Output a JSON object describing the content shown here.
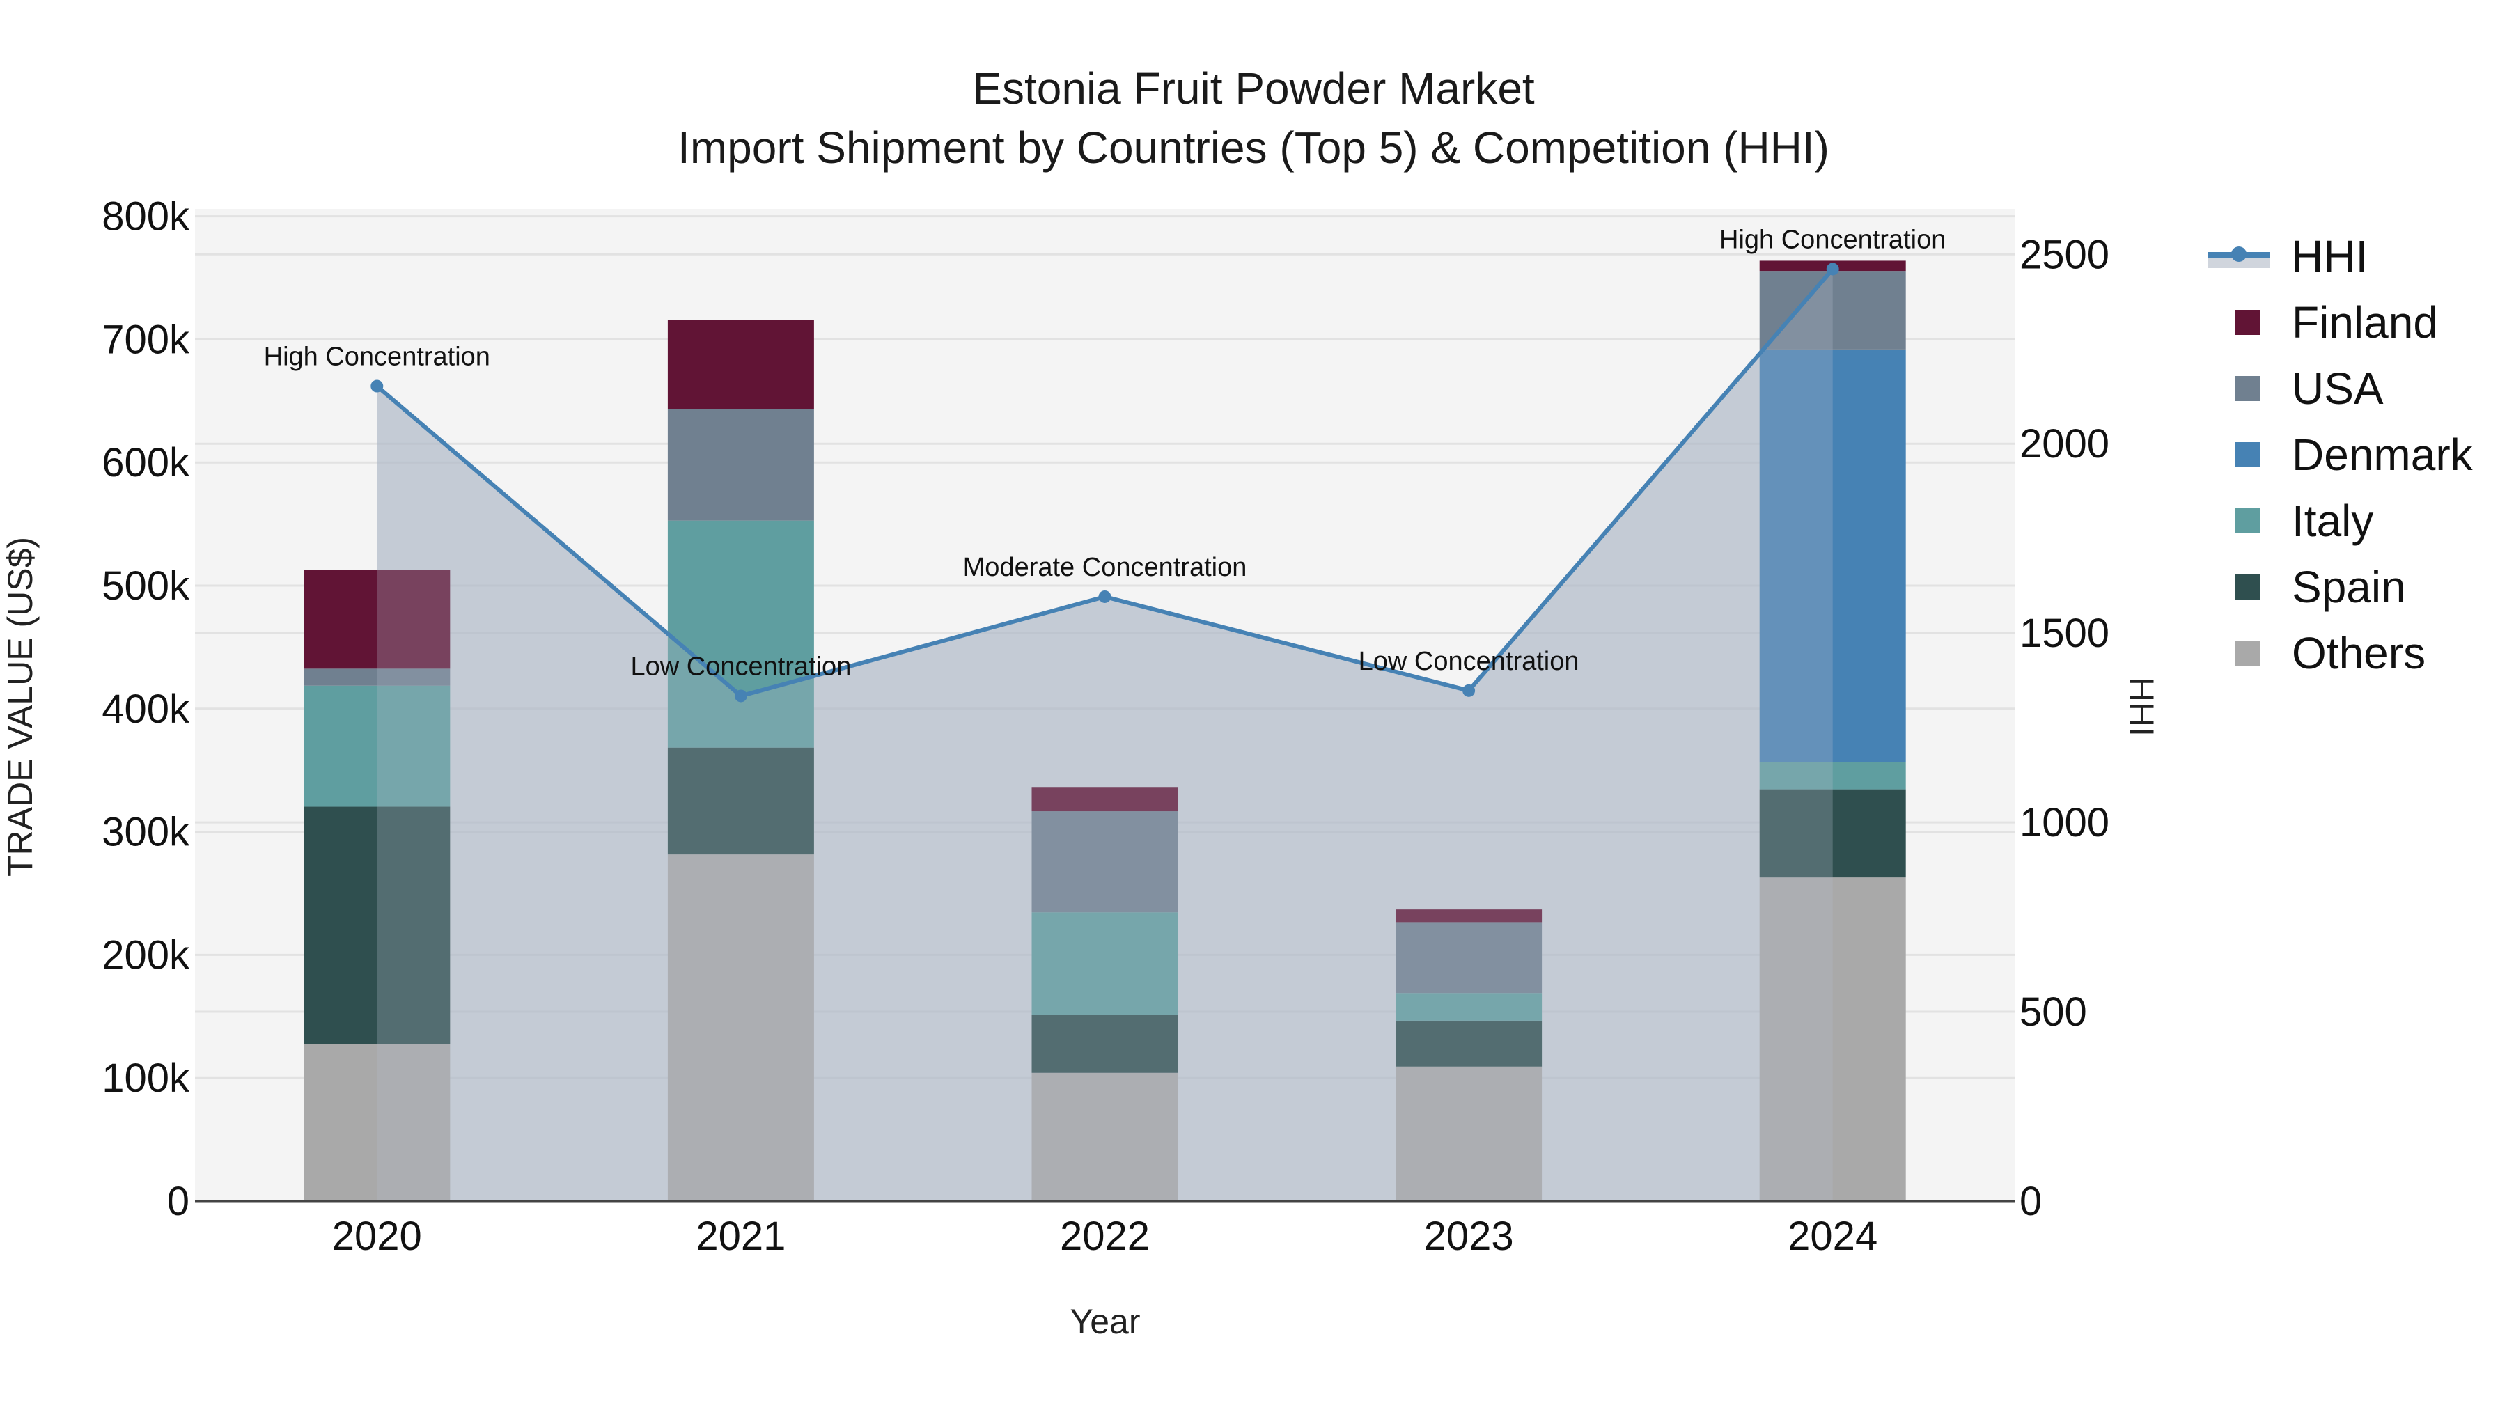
{
  "title": {
    "line1": "Estonia Fruit Powder Market",
    "line2": "Import Shipment by Countries (Top 5) & Competition (HHI)"
  },
  "axes": {
    "x_title": "Year",
    "y_left_title": "TRADE VALUE (US$)",
    "y_right_title": "HHI",
    "y_left_ticks": [
      "0",
      "100k",
      "200k",
      "300k",
      "400k",
      "500k",
      "600k",
      "700k",
      "800k"
    ],
    "y_right_ticks": [
      "0",
      "500",
      "1000",
      "1500",
      "2000",
      "2500"
    ]
  },
  "legend": [
    {
      "label": "HHI",
      "type": "line",
      "color": "#4682b4"
    },
    {
      "label": "Finland",
      "type": "bar",
      "color": "#611435"
    },
    {
      "label": "USA",
      "type": "bar",
      "color": "#708090"
    },
    {
      "label": "Denmark",
      "type": "bar",
      "color": "#4682b4"
    },
    {
      "label": "Italy",
      "type": "bar",
      "color": "#5f9ea0"
    },
    {
      "label": "Spain",
      "type": "bar",
      "color": "#2f4f4f"
    },
    {
      "label": "Others",
      "type": "bar",
      "color": "#a9a9a9"
    }
  ],
  "chart_data": {
    "type": "bar",
    "subtype": "stacked bar with HHI line (secondary axis)",
    "title": "Estonia Fruit Powder Market — Import Shipment by Countries (Top 5) & Competition (HHI)",
    "xlabel": "Year",
    "ylabel": "TRADE VALUE (US$)",
    "y2label": "HHI",
    "categories": [
      "2020",
      "2021",
      "2022",
      "2023",
      "2024"
    ],
    "ylim": [
      0,
      806000
    ],
    "y2lim": [
      0,
      2620
    ],
    "grid": true,
    "legend_position": "right",
    "series": [
      {
        "name": "Others",
        "color": "#a9a9a9",
        "values": [
          127600,
          281600,
          104200,
          109300,
          262900
        ]
      },
      {
        "name": "Spain",
        "color": "#2f4f4f",
        "values": [
          192800,
          86800,
          46900,
          37300,
          71600
        ]
      },
      {
        "name": "Italy",
        "color": "#5f9ea0",
        "values": [
          98300,
          184400,
          83500,
          22400,
          22300
        ]
      },
      {
        "name": "Denmark",
        "color": "#4682b4",
        "values": [
          0,
          0,
          0,
          0,
          335000
        ]
      },
      {
        "name": "USA",
        "color": "#708090",
        "values": [
          13800,
          90600,
          82100,
          57600,
          63800
        ]
      },
      {
        "name": "Finland",
        "color": "#611435",
        "values": [
          80000,
          72600,
          19700,
          10300,
          8300
        ]
      }
    ],
    "totals": [
      512500,
      716000,
      336400,
      236900,
      763900
    ],
    "hhi": {
      "name": "HHI",
      "axis": "right",
      "color": "#4682b4",
      "values": [
        2152,
        1334,
        1596,
        1348,
        2461
      ],
      "annotations": [
        "High Concentration",
        "Low Concentration",
        "Moderate Concentration",
        "Low Concentration",
        "High Concentration"
      ]
    }
  }
}
